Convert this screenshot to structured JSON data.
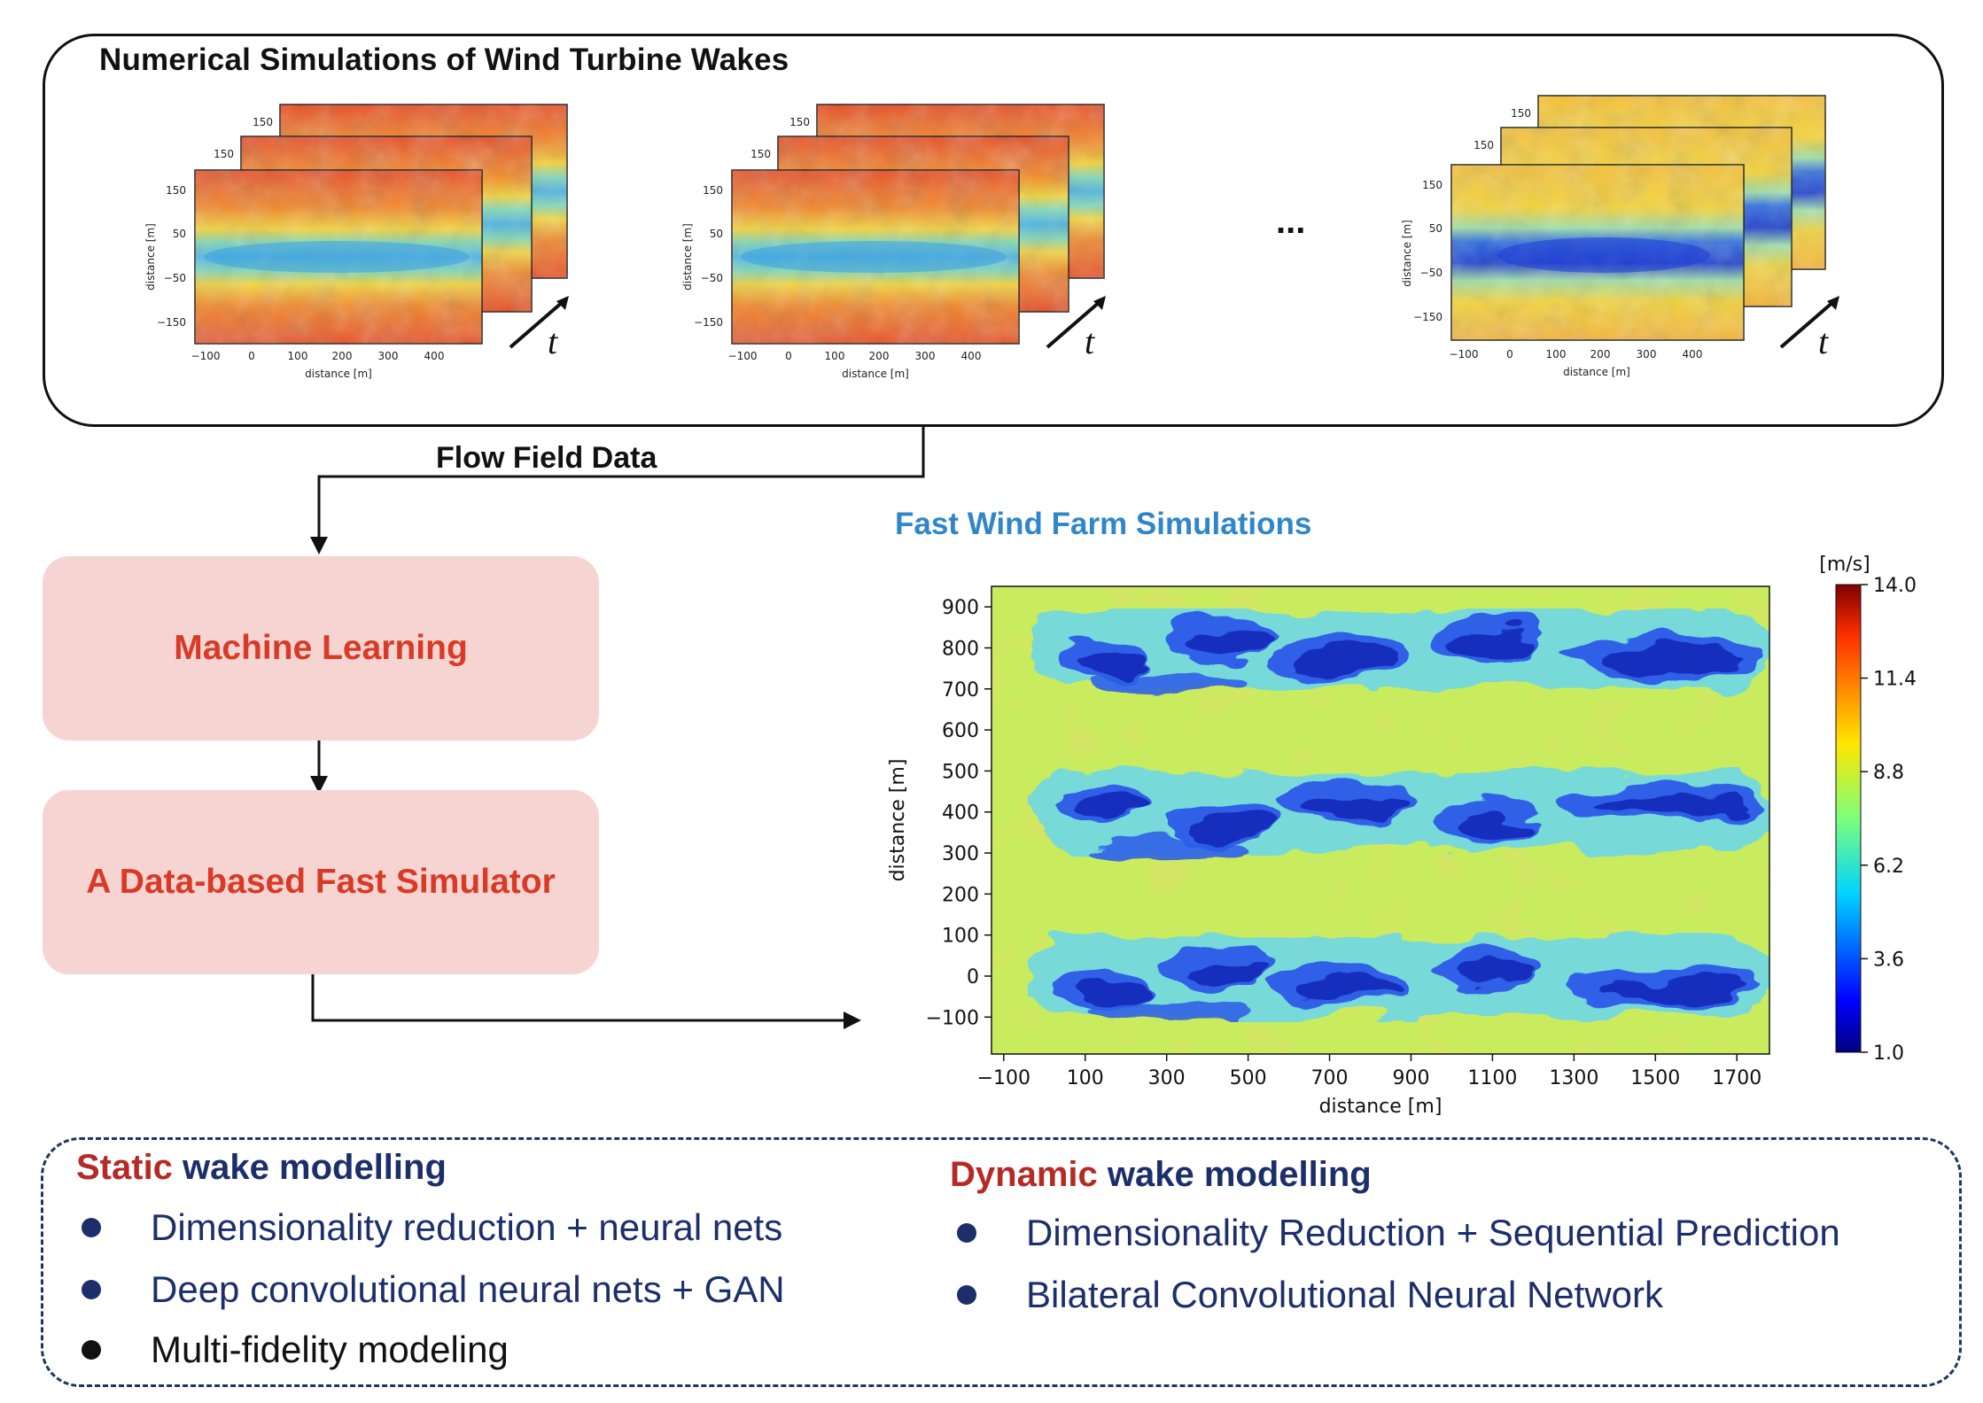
{
  "top_panel": {
    "title": "Numerical Simulations of Wind Turbine Wakes",
    "ellipsis": "...",
    "time_label": "t",
    "thumbnail": {
      "x_ticks": [
        "−100",
        "0",
        "100",
        "200",
        "300",
        "400"
      ],
      "y_ticks": [
        "150",
        "50",
        "−50",
        "−150"
      ],
      "back_tick": "150",
      "x_label": "distance [m]",
      "y_label": "distance [m]"
    }
  },
  "flow_label": "Flow Field Data",
  "ml_box": {
    "label": "Machine Learning"
  },
  "sim_box": {
    "label": "A Data-based Fast Simulator"
  },
  "fast_sim": {
    "title": "Fast Wind Farm Simulations",
    "colorbar_unit": "[m/s]",
    "colorbar_ticks": [
      "14.0",
      "11.4",
      "8.8",
      "6.2",
      "3.6",
      "1.0"
    ]
  },
  "chart_data": {
    "type": "heatmap",
    "title": "Fast Wind Farm Simulations",
    "xlabel": "distance [m]",
    "ylabel": "distance [m]",
    "x_ticks": [
      "−100",
      "100",
      "300",
      "500",
      "700",
      "900",
      "1100",
      "1300",
      "1500",
      "1700"
    ],
    "y_ticks": [
      "900",
      "800",
      "700",
      "600",
      "500",
      "400",
      "300",
      "200",
      "100",
      "0",
      "−100"
    ],
    "xlim": [
      -130,
      1780
    ],
    "ylim": [
      -190,
      950
    ],
    "colorbar": {
      "label": "[m/s]",
      "min": 1.0,
      "max": 14.0,
      "ticks": [
        14.0,
        11.4,
        8.8,
        6.2,
        3.6,
        1.0
      ],
      "colormap": "jet"
    },
    "wake_rows_y": [
      800,
      400,
      0
    ],
    "background_value": 8.5,
    "wake_core_value": 3.0
  },
  "static": {
    "accent": "Static",
    "rest": " wake modelling",
    "items": [
      "Dimensionality reduction + neural nets",
      "Deep convolutional neural nets + GAN",
      "Multi-fidelity modeling"
    ]
  },
  "dynamic": {
    "accent": "Dynamic",
    "rest": " wake modelling",
    "items": [
      "Dimensionality Reduction + Sequential Prediction",
      "Bilateral Convolutional Neural Network"
    ]
  },
  "colors": {
    "accent_red": "#b52a25",
    "navy": "#1c2f6b",
    "ml_text": "#d93a26",
    "box_fill": "#f6d4d1",
    "title_blue": "#2f86c8"
  }
}
